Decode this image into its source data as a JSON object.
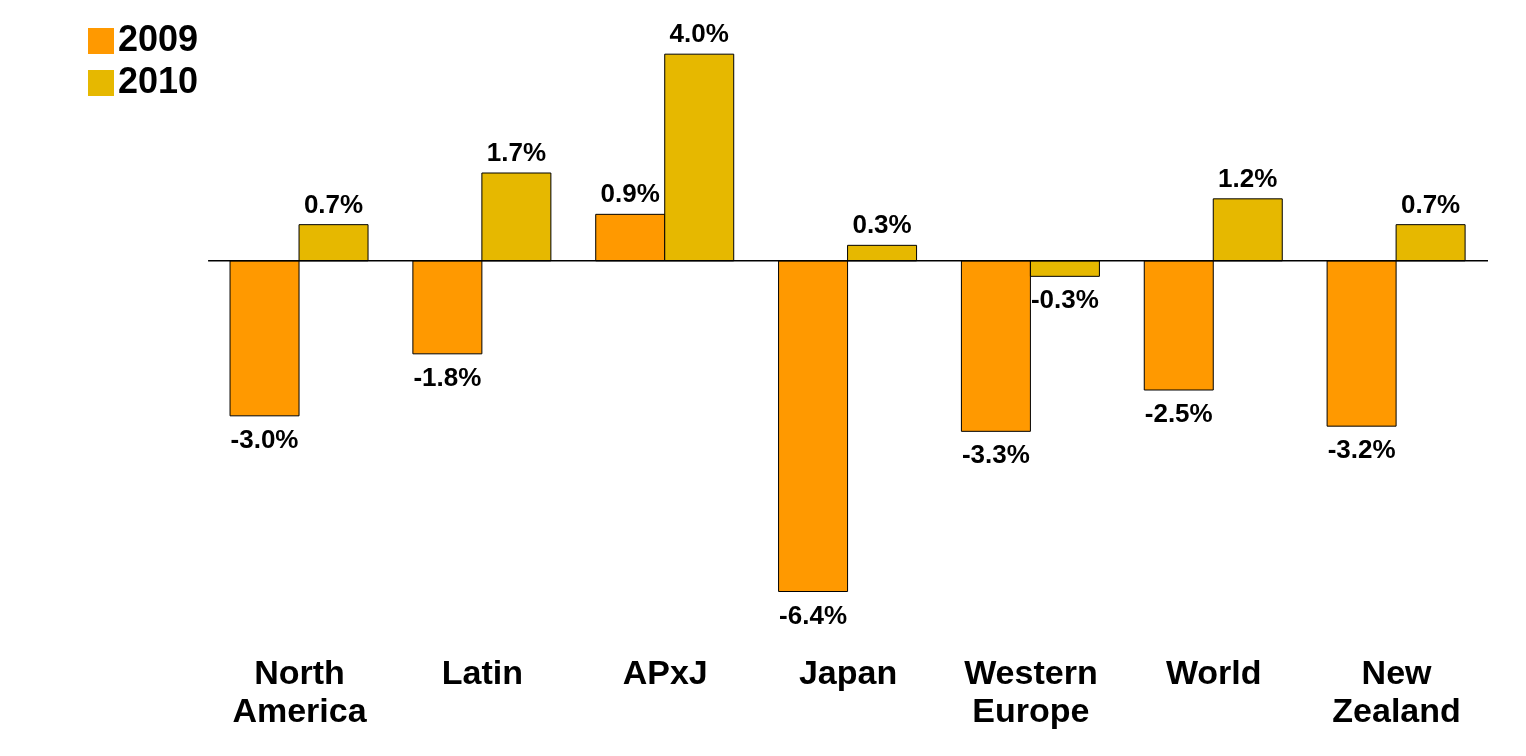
{
  "chart_data": {
    "type": "bar",
    "categories": [
      "North America",
      "Latin",
      "APxJ",
      "Japan",
      "Western Europe",
      "World",
      "New Zealand"
    ],
    "series": [
      {
        "name": "2009",
        "color": "#ff9900",
        "values": [
          -3.0,
          -1.8,
          0.9,
          -6.4,
          -3.3,
          -2.5,
          -3.2
        ],
        "value_labels": [
          "-3.0%",
          "-1.8%",
          "0.9%",
          "-6.4%",
          "-3.3%",
          "-2.5%",
          "-3.2%"
        ]
      },
      {
        "name": "2010",
        "color": "#e6b800",
        "values": [
          0.7,
          1.7,
          4.0,
          0.3,
          -0.3,
          1.2,
          0.7
        ],
        "value_labels": [
          "0.7%",
          "1.7%",
          "4.0%",
          "0.3%",
          "-0.3%",
          "1.2%",
          "0.7%"
        ]
      }
    ],
    "legend": "top left",
    "grid": false
  }
}
